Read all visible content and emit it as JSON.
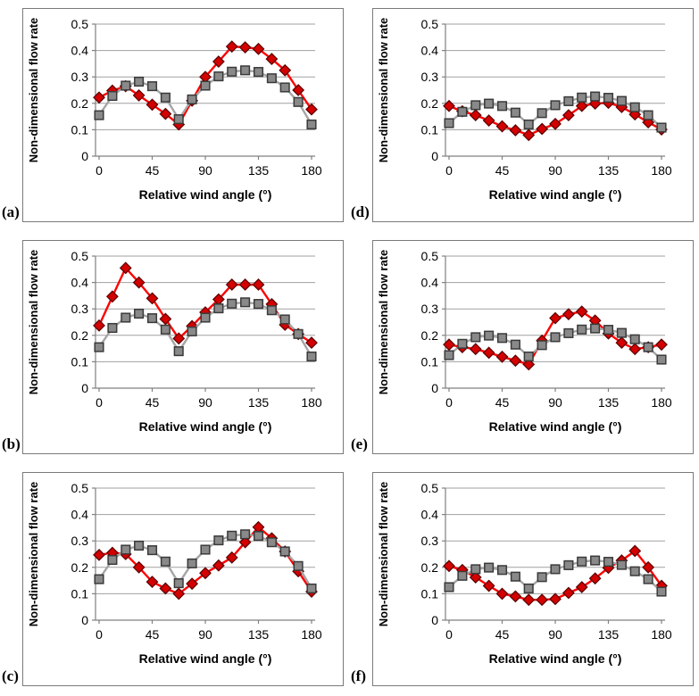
{
  "figure": {
    "xlabel": "Relative wind angle (°)",
    "ylabel": "Non-dimensional flow rate",
    "xticks": [
      0,
      45,
      90,
      135,
      180
    ],
    "xtick_labels": [
      "0",
      "45",
      "90",
      "135",
      "180"
    ],
    "yticks": [
      0,
      0.1,
      0.2,
      0.3,
      0.4,
      0.5
    ],
    "ytick_labels": [
      "0",
      "0.1",
      "0.2",
      "0.3",
      "0.4",
      "0.5"
    ],
    "xlim": [
      0,
      180
    ],
    "ylim": [
      0,
      0.5
    ],
    "grid": "horizontal",
    "legend": "none"
  },
  "colors": {
    "red_line": "#fe0000",
    "red_marker_fill": "#d40000",
    "red_marker_stroke": "#5e0000",
    "gray_line": "#a5a5a5",
    "gray_marker_fill": "#898989",
    "gray_marker_stroke": "#3a3a3a",
    "gridline": "#a0a0a0",
    "axis_line": "#808080",
    "frame": "#7a7a7a",
    "text": "#000000"
  },
  "chart_data": [
    {
      "panel": "(a)",
      "type": "line",
      "xlabel": "Relative wind angle (°)",
      "ylabel": "Non-dimensional flow rate",
      "xlim": [
        0,
        180
      ],
      "ylim": [
        0,
        0.5
      ],
      "x": [
        0,
        11.25,
        22.5,
        33.75,
        45,
        56.25,
        67.5,
        78.75,
        90,
        101.25,
        112.5,
        123.75,
        135,
        146.25,
        157.5,
        168.75,
        180
      ],
      "series": [
        {
          "name": "red-diamond-series",
          "values": [
            0.222,
            0.248,
            0.265,
            0.23,
            0.195,
            0.16,
            0.12,
            0.21,
            0.3,
            0.358,
            0.415,
            0.412,
            0.406,
            0.368,
            0.325,
            0.25,
            0.177
          ]
        },
        {
          "name": "gray-square-series",
          "values": [
            0.155,
            0.228,
            0.267,
            0.282,
            0.265,
            0.222,
            0.14,
            0.215,
            0.267,
            0.302,
            0.32,
            0.325,
            0.319,
            0.295,
            0.26,
            0.205,
            0.12
          ]
        }
      ]
    },
    {
      "panel": "(b)",
      "type": "line",
      "xlabel": "Relative wind angle (°)",
      "ylabel": "Non-dimensional flow rate",
      "xlim": [
        0,
        180
      ],
      "ylim": [
        0,
        0.5
      ],
      "x": [
        0,
        11.25,
        22.5,
        33.75,
        45,
        56.25,
        67.5,
        78.75,
        90,
        101.25,
        112.5,
        123.75,
        135,
        146.25,
        157.5,
        168.75,
        180
      ],
      "series": [
        {
          "name": "red-diamond-series",
          "values": [
            0.237,
            0.347,
            0.455,
            0.4,
            0.34,
            0.262,
            0.188,
            0.235,
            0.287,
            0.336,
            0.392,
            0.392,
            0.392,
            0.318,
            0.24,
            0.205,
            0.172
          ]
        },
        {
          "name": "gray-square-series",
          "values": [
            0.155,
            0.228,
            0.267,
            0.282,
            0.265,
            0.222,
            0.14,
            0.215,
            0.267,
            0.302,
            0.32,
            0.325,
            0.319,
            0.295,
            0.26,
            0.205,
            0.12
          ]
        }
      ]
    },
    {
      "panel": "(c)",
      "type": "line",
      "xlabel": "Relative wind angle (°)",
      "ylabel": "Non-dimensional flow rate",
      "xlim": [
        0,
        180
      ],
      "ylim": [
        0,
        0.5
      ],
      "x": [
        0,
        11.25,
        22.5,
        33.75,
        45,
        56.25,
        67.5,
        78.75,
        90,
        101.25,
        112.5,
        123.75,
        135,
        146.25,
        157.5,
        168.75,
        180
      ],
      "series": [
        {
          "name": "red-diamond-series",
          "values": [
            0.247,
            0.255,
            0.25,
            0.2,
            0.145,
            0.12,
            0.1,
            0.138,
            0.178,
            0.207,
            0.237,
            0.295,
            0.352,
            0.31,
            0.26,
            0.185,
            0.108
          ]
        },
        {
          "name": "gray-square-series",
          "values": [
            0.155,
            0.228,
            0.267,
            0.282,
            0.265,
            0.222,
            0.14,
            0.215,
            0.267,
            0.302,
            0.32,
            0.325,
            0.319,
            0.295,
            0.26,
            0.205,
            0.12
          ]
        }
      ]
    },
    {
      "panel": "(d)",
      "type": "line",
      "xlabel": "Relative wind angle (°)",
      "ylabel": "Non-dimensional flow rate",
      "xlim": [
        0,
        180
      ],
      "ylim": [
        0,
        0.5
      ],
      "x": [
        0,
        11.25,
        22.5,
        33.75,
        45,
        56.25,
        67.5,
        78.75,
        90,
        101.25,
        112.5,
        123.75,
        135,
        146.25,
        157.5,
        168.75,
        180
      ],
      "series": [
        {
          "name": "red-diamond-series",
          "values": [
            0.19,
            0.17,
            0.155,
            0.135,
            0.113,
            0.098,
            0.08,
            0.103,
            0.122,
            0.155,
            0.19,
            0.199,
            0.202,
            0.186,
            0.158,
            0.128,
            0.101
          ]
        },
        {
          "name": "gray-square-series",
          "values": [
            0.125,
            0.168,
            0.193,
            0.199,
            0.19,
            0.165,
            0.12,
            0.163,
            0.193,
            0.208,
            0.222,
            0.226,
            0.221,
            0.209,
            0.185,
            0.155,
            0.108
          ]
        }
      ]
    },
    {
      "panel": "(e)",
      "type": "line",
      "xlabel": "Relative wind angle (°)",
      "ylabel": "Non-dimensional flow rate",
      "xlim": [
        0,
        180
      ],
      "ylim": [
        0,
        0.5
      ],
      "x": [
        0,
        11.25,
        22.5,
        33.75,
        45,
        56.25,
        67.5,
        78.75,
        90,
        101.25,
        112.5,
        123.75,
        135,
        146.25,
        157.5,
        168.75,
        180
      ],
      "series": [
        {
          "name": "red-diamond-series",
          "values": [
            0.165,
            0.155,
            0.148,
            0.134,
            0.119,
            0.104,
            0.09,
            0.18,
            0.265,
            0.28,
            0.29,
            0.256,
            0.207,
            0.172,
            0.148,
            0.155,
            0.165
          ]
        },
        {
          "name": "gray-square-series",
          "values": [
            0.125,
            0.168,
            0.193,
            0.199,
            0.19,
            0.165,
            0.12,
            0.163,
            0.193,
            0.208,
            0.222,
            0.226,
            0.221,
            0.209,
            0.185,
            0.155,
            0.108
          ]
        }
      ]
    },
    {
      "panel": "(f)",
      "type": "line",
      "xlabel": "Relative wind angle (°)",
      "ylabel": "Non-dimensional flow rate",
      "xlim": [
        0,
        180
      ],
      "ylim": [
        0,
        0.5
      ],
      "x": [
        0,
        11.25,
        22.5,
        33.75,
        45,
        56.25,
        67.5,
        78.75,
        90,
        101.25,
        112.5,
        123.75,
        135,
        146.25,
        157.5,
        168.75,
        180
      ],
      "series": [
        {
          "name": "red-diamond-series",
          "values": [
            0.205,
            0.19,
            0.162,
            0.13,
            0.1,
            0.09,
            0.077,
            0.077,
            0.08,
            0.103,
            0.125,
            0.158,
            0.198,
            0.226,
            0.262,
            0.2,
            0.13
          ]
        },
        {
          "name": "gray-square-series",
          "values": [
            0.125,
            0.168,
            0.193,
            0.199,
            0.19,
            0.165,
            0.12,
            0.163,
            0.193,
            0.208,
            0.222,
            0.226,
            0.221,
            0.209,
            0.185,
            0.155,
            0.108
          ]
        }
      ]
    }
  ]
}
